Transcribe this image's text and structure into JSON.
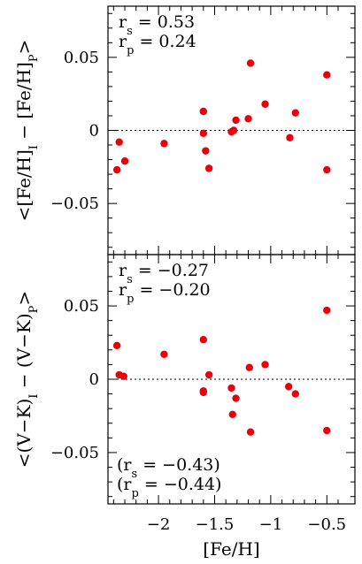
{
  "chart_data": [
    {
      "type": "scatter",
      "ylabel": "<[Fe/H]_I − [Fe/H]_P>",
      "ylim": [
        -0.085,
        0.085
      ],
      "xlim": [
        -2.45,
        -0.25
      ],
      "y_ticks": [
        -0.05,
        0,
        0.05
      ],
      "y_tick_labels": [
        "−0.05",
        "0",
        "0.05"
      ],
      "stats": [
        {
          "sym": "r",
          "sub": "s",
          "rest": " =  0.53"
        },
        {
          "sym": "r",
          "sub": "p",
          "rest": " =  0.24"
        }
      ],
      "series": [
        {
          "color": "#e8000b",
          "points": [
            {
              "x": -2.37,
              "y": -0.027
            },
            {
              "x": -2.35,
              "y": -0.008
            },
            {
              "x": -2.3,
              "y": -0.021
            },
            {
              "x": -1.95,
              "y": -0.009
            },
            {
              "x": -1.6,
              "y": 0.013
            },
            {
              "x": -1.6,
              "y": -0.002
            },
            {
              "x": -1.58,
              "y": -0.014
            },
            {
              "x": -1.55,
              "y": -0.026
            },
            {
              "x": -1.35,
              "y": -0.001
            },
            {
              "x": -1.33,
              "y": 0.0
            },
            {
              "x": -1.31,
              "y": 0.007
            },
            {
              "x": -1.2,
              "y": 0.008
            },
            {
              "x": -1.18,
              "y": 0.046
            },
            {
              "x": -1.05,
              "y": 0.018
            },
            {
              "x": -0.83,
              "y": -0.005
            },
            {
              "x": -0.78,
              "y": 0.012
            },
            {
              "x": -0.5,
              "y": 0.038
            },
            {
              "x": -0.5,
              "y": -0.027
            }
          ]
        }
      ]
    },
    {
      "type": "scatter",
      "ylabel": "<(V−K)_I − (V−K)_P>",
      "xlabel": "[Fe/H]",
      "ylim": [
        -0.085,
        0.085
      ],
      "xlim": [
        -2.45,
        -0.25
      ],
      "x_ticks": [
        -2,
        -1.5,
        -1,
        -0.5
      ],
      "x_tick_labels": [
        "−2",
        "−1.5",
        "−1",
        "−0.5"
      ],
      "y_ticks": [
        -0.05,
        0,
        0.05
      ],
      "y_tick_labels": [
        "−0.05",
        "0",
        "0.05"
      ],
      "stats": [
        {
          "sym": "r",
          "sub": "s",
          "rest": " =  −0.27"
        },
        {
          "sym": "r",
          "sub": "p",
          "rest": " =  −0.20"
        }
      ],
      "stats_bottom": [
        {
          "sym": "(r",
          "sub": "s",
          "rest": " =  −0.43)"
        },
        {
          "sym": "(r",
          "sub": "p",
          "rest": " =  −0.44)"
        }
      ],
      "series": [
        {
          "color": "#e8000b",
          "points": [
            {
              "x": -2.37,
              "y": 0.023
            },
            {
              "x": -2.35,
              "y": 0.003
            },
            {
              "x": -2.31,
              "y": 0.002
            },
            {
              "x": -1.95,
              "y": 0.017
            },
            {
              "x": -1.6,
              "y": 0.027
            },
            {
              "x": -1.6,
              "y": -0.008
            },
            {
              "x": -1.6,
              "y": -0.009
            },
            {
              "x": -1.55,
              "y": 0.003
            },
            {
              "x": -1.35,
              "y": -0.006
            },
            {
              "x": -1.34,
              "y": -0.024
            },
            {
              "x": -1.31,
              "y": -0.013
            },
            {
              "x": -1.19,
              "y": 0.008
            },
            {
              "x": -1.18,
              "y": -0.036
            },
            {
              "x": -1.05,
              "y": 0.01
            },
            {
              "x": -0.84,
              "y": -0.005
            },
            {
              "x": -0.78,
              "y": -0.01
            },
            {
              "x": -0.5,
              "y": 0.047
            },
            {
              "x": -0.5,
              "y": -0.035
            }
          ]
        }
      ]
    }
  ]
}
